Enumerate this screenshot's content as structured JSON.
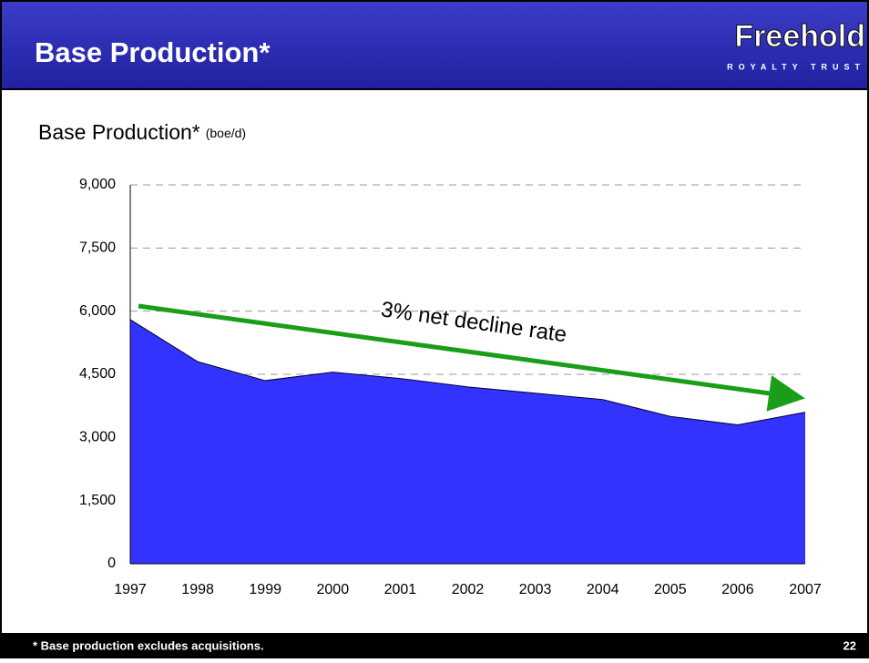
{
  "header": {
    "title": "Base Production*",
    "logo": "Freehold",
    "logo_subtitle": "ROYALTY TRUST"
  },
  "chart_data": {
    "type": "area",
    "title": "Base Production*",
    "subtitle": "(boe/d)",
    "categories": [
      "1997",
      "1998",
      "1999",
      "2000",
      "2001",
      "2002",
      "2003",
      "2004",
      "2005",
      "2006",
      "2007"
    ],
    "values": [
      5800,
      4800,
      4350,
      4550,
      4400,
      4200,
      4050,
      3900,
      3500,
      3300,
      3600
    ],
    "color": "#3333ff",
    "ylim": [
      0,
      9000
    ],
    "yticks": [
      0,
      {
        "value": 1500,
        "label": "1,500"
      },
      {
        "value": 3000,
        "label": "3,000"
      },
      {
        "value": 4500,
        "label": "4,500"
      },
      {
        "value": 6000,
        "label": "6,000"
      },
      {
        "value": 7500,
        "label": "7,500"
      },
      {
        "value": 9000,
        "label": "9,000"
      }
    ],
    "grid": true,
    "annotation": "3% net decline rate"
  },
  "footer": {
    "note": "* Base production excludes acquisitions.",
    "page_number": "22"
  }
}
